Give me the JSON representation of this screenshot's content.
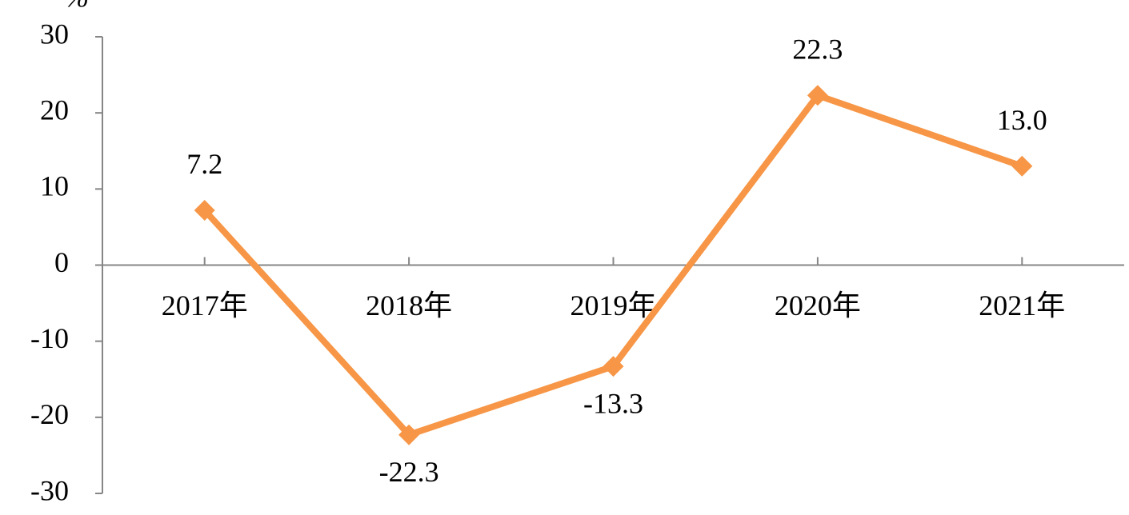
{
  "chart_data": {
    "type": "line",
    "y_label": "%",
    "categories": [
      "2017年",
      "2018年",
      "2019年",
      "2020年",
      "2021年"
    ],
    "series": [
      {
        "color": "#f79646",
        "values": [
          7.2,
          -22.3,
          -13.3,
          22.3,
          13.0
        ],
        "value_labels": [
          "7.2",
          "-22.3",
          "-13.3",
          "22.3",
          "13.0"
        ]
      }
    ],
    "ylim": [
      -30,
      30
    ],
    "yticks": [
      -30,
      -20,
      -10,
      0,
      10,
      20,
      30
    ]
  }
}
